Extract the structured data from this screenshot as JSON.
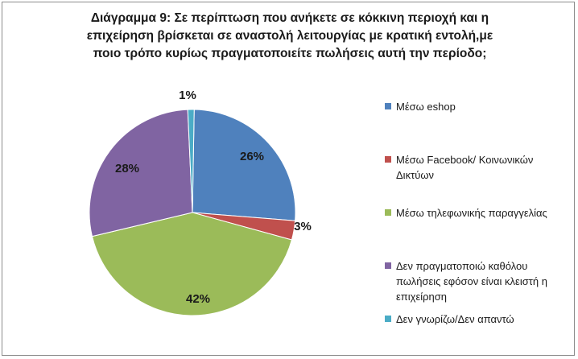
{
  "chart_data": {
    "type": "pie",
    "title_lines": [
      "Διάγραμμα 9: Σε περίπτωση που ανήκετε σε κόκκινη περιοχή και η",
      "επιχείρηση βρίσκεται σε αναστολή  λειτουργίας με κρατική εντολή,με",
      "ποιο τρόπο κυρίως πραγματοποιείτε πωλήσεις αυτή την περίοδο;"
    ],
    "categories": [
      "Μέσω eshop",
      "Μέσω Facebook/ Κοινωνικών Δικτύων",
      "Μέσω τηλεφωνικής παραγγελίας",
      "Δεν πραγματοποιώ καθόλου πωλήσεις εφόσον είναι κλειστή η επιχείρηση",
      "Δεν γνωρίζω/Δεν απαντώ"
    ],
    "values": [
      26,
      3,
      42,
      28,
      1
    ],
    "data_labels": [
      "26%",
      "3%",
      "42%",
      "28%",
      "1%"
    ],
    "colors": [
      "#4f81bd",
      "#c0504d",
      "#9bbb59",
      "#8064a2",
      "#4bacc6"
    ],
    "legend_position": "right",
    "legend_lines": [
      [
        "Μέσω eshop"
      ],
      [
        "Μέσω Facebook/ Κοινωνικών",
        "Δικτύων"
      ],
      [
        "Μέσω τηλεφωνικής παραγγελίας"
      ],
      [
        "Δεν πραγματοποιώ καθόλου",
        "πωλήσεις εφόσον είναι κλειστή η",
        "επιχείρηση"
      ],
      [
        "Δεν γνωρίζω/Δεν απαντώ"
      ]
    ]
  }
}
